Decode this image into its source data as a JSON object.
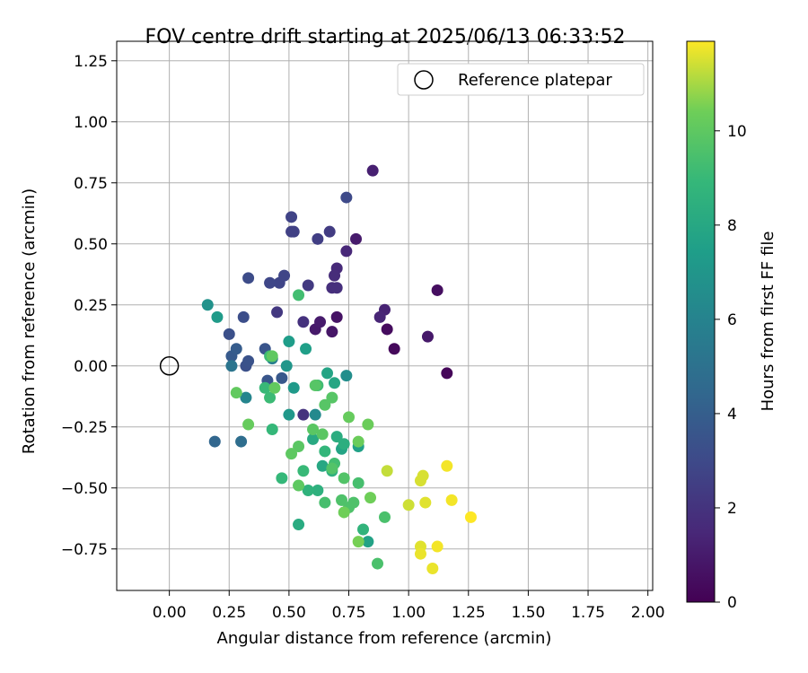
{
  "chart_data": {
    "type": "scatter",
    "title": "FOV centre drift starting at 2025/06/13 06:33:52",
    "xlabel": "Angular distance from reference (arcmin)",
    "ylabel": "Rotation from reference (arcmin)",
    "xlim": [
      -0.22,
      2.02
    ],
    "ylim": [
      -0.92,
      1.33
    ],
    "xticks": [
      "0.00",
      "0.25",
      "0.50",
      "0.75",
      "1.00",
      "1.25",
      "1.50",
      "1.75",
      "2.00"
    ],
    "yticks": [
      "−0.75",
      "−0.50",
      "−0.25",
      "0.00",
      "0.25",
      "0.50",
      "0.75",
      "1.00",
      "1.25"
    ],
    "grid": true,
    "legend": {
      "placement": "top-right",
      "entries": [
        "Reference platepar"
      ]
    },
    "reference_point": {
      "x": 0.0,
      "y": 0.0,
      "marker": "open-circle",
      "label": "Reference platepar"
    },
    "colorbar": {
      "label": "Hours from first FF file",
      "colormap": "viridis",
      "range": [
        0,
        11.9
      ],
      "ticks": [
        "0",
        "2",
        "4",
        "6",
        "8",
        "10"
      ]
    },
    "points": [
      {
        "x": 1.16,
        "y": -0.03,
        "h": 0.2
      },
      {
        "x": 0.94,
        "y": 0.07,
        "h": 0.3
      },
      {
        "x": 0.91,
        "y": 0.15,
        "h": 0.4
      },
      {
        "x": 1.12,
        "y": 0.31,
        "h": 0.5
      },
      {
        "x": 1.08,
        "y": 0.12,
        "h": 0.9
      },
      {
        "x": 0.7,
        "y": 0.2,
        "h": 0.7
      },
      {
        "x": 0.68,
        "y": 0.14,
        "h": 0.8
      },
      {
        "x": 0.61,
        "y": 0.15,
        "h": 0.9
      },
      {
        "x": 0.63,
        "y": 0.18,
        "h": 1.0
      },
      {
        "x": 0.78,
        "y": 0.52,
        "h": 1.0
      },
      {
        "x": 0.85,
        "y": 0.8,
        "h": 1.2
      },
      {
        "x": 0.9,
        "y": 0.23,
        "h": 1.3
      },
      {
        "x": 0.88,
        "y": 0.2,
        "h": 1.4
      },
      {
        "x": 0.74,
        "y": 0.47,
        "h": 1.5
      },
      {
        "x": 0.7,
        "y": 0.4,
        "h": 1.6
      },
      {
        "x": 0.69,
        "y": 0.37,
        "h": 1.7
      },
      {
        "x": 0.68,
        "y": 0.32,
        "h": 1.8
      },
      {
        "x": 0.7,
        "y": 0.32,
        "h": 1.8
      },
      {
        "x": 0.56,
        "y": 0.18,
        "h": 1.9
      },
      {
        "x": 0.56,
        "y": -0.2,
        "h": 2.0
      },
      {
        "x": 0.45,
        "y": 0.22,
        "h": 2.2
      },
      {
        "x": 0.58,
        "y": 0.33,
        "h": 2.3
      },
      {
        "x": 0.67,
        "y": 0.55,
        "h": 2.4
      },
      {
        "x": 0.62,
        "y": 0.52,
        "h": 2.5
      },
      {
        "x": 0.52,
        "y": 0.55,
        "h": 2.6
      },
      {
        "x": 0.51,
        "y": 0.55,
        "h": 2.6
      },
      {
        "x": 0.51,
        "y": 0.61,
        "h": 2.7
      },
      {
        "x": 0.46,
        "y": 0.34,
        "h": 2.8
      },
      {
        "x": 0.48,
        "y": 0.37,
        "h": 2.8
      },
      {
        "x": 0.42,
        "y": 0.34,
        "h": 2.9
      },
      {
        "x": 0.74,
        "y": 0.69,
        "h": 3.0
      },
      {
        "x": 0.33,
        "y": 0.36,
        "h": 3.1
      },
      {
        "x": 0.31,
        "y": 0.2,
        "h": 3.2
      },
      {
        "x": 0.25,
        "y": 0.13,
        "h": 3.3
      },
      {
        "x": 0.32,
        "y": -0.0,
        "h": 3.3
      },
      {
        "x": 0.33,
        "y": 0.02,
        "h": 3.4
      },
      {
        "x": 0.4,
        "y": 0.07,
        "h": 3.5
      },
      {
        "x": 0.41,
        "y": -0.06,
        "h": 3.6
      },
      {
        "x": 0.47,
        "y": -0.05,
        "h": 3.7
      },
      {
        "x": 0.26,
        "y": 0.04,
        "h": 3.8
      },
      {
        "x": 0.28,
        "y": 0.07,
        "h": 3.9
      },
      {
        "x": 0.19,
        "y": -0.31,
        "h": 4.4
      },
      {
        "x": 0.3,
        "y": -0.31,
        "h": 4.8
      },
      {
        "x": 0.26,
        "y": 0.0,
        "h": 5.2
      },
      {
        "x": 0.43,
        "y": 0.03,
        "h": 5.7
      },
      {
        "x": 0.32,
        "y": -0.13,
        "h": 6.1
      },
      {
        "x": 0.61,
        "y": -0.2,
        "h": 6.3
      },
      {
        "x": 0.74,
        "y": -0.04,
        "h": 6.6
      },
      {
        "x": 0.16,
        "y": 0.25,
        "h": 6.8
      },
      {
        "x": 0.49,
        "y": -0.0,
        "h": 7.0
      },
      {
        "x": 0.5,
        "y": -0.2,
        "h": 7.1
      },
      {
        "x": 0.52,
        "y": -0.09,
        "h": 7.2
      },
      {
        "x": 0.2,
        "y": 0.2,
        "h": 7.3
      },
      {
        "x": 0.5,
        "y": 0.1,
        "h": 7.4
      },
      {
        "x": 0.57,
        "y": 0.07,
        "h": 7.5
      },
      {
        "x": 0.79,
        "y": -0.33,
        "h": 7.6
      },
      {
        "x": 0.83,
        "y": -0.72,
        "h": 7.7
      },
      {
        "x": 0.72,
        "y": -0.34,
        "h": 7.8
      },
      {
        "x": 0.66,
        "y": -0.03,
        "h": 7.8
      },
      {
        "x": 0.69,
        "y": -0.07,
        "h": 7.9
      },
      {
        "x": 0.64,
        "y": -0.41,
        "h": 8.0
      },
      {
        "x": 0.6,
        "y": -0.3,
        "h": 8.1
      },
      {
        "x": 0.54,
        "y": -0.65,
        "h": 8.2
      },
      {
        "x": 0.7,
        "y": -0.29,
        "h": 8.3
      },
      {
        "x": 0.73,
        "y": -0.32,
        "h": 8.4
      },
      {
        "x": 0.62,
        "y": -0.51,
        "h": 8.5
      },
      {
        "x": 0.68,
        "y": -0.43,
        "h": 8.5
      },
      {
        "x": 0.58,
        "y": -0.51,
        "h": 8.6
      },
      {
        "x": 0.81,
        "y": -0.67,
        "h": 8.7
      },
      {
        "x": 0.65,
        "y": -0.35,
        "h": 8.8
      },
      {
        "x": 0.43,
        "y": -0.26,
        "h": 8.9
      },
      {
        "x": 0.47,
        "y": -0.46,
        "h": 8.9
      },
      {
        "x": 0.56,
        "y": -0.43,
        "h": 9.0
      },
      {
        "x": 0.4,
        "y": -0.09,
        "h": 9.0
      },
      {
        "x": 0.42,
        "y": 0.04,
        "h": 9.1
      },
      {
        "x": 0.42,
        "y": -0.13,
        "h": 9.1
      },
      {
        "x": 0.62,
        "y": -0.08,
        "h": 9.2
      },
      {
        "x": 0.54,
        "y": 0.29,
        "h": 9.3
      },
      {
        "x": 0.69,
        "y": -0.4,
        "h": 9.3
      },
      {
        "x": 0.79,
        "y": -0.48,
        "h": 9.4
      },
      {
        "x": 0.65,
        "y": -0.56,
        "h": 9.4
      },
      {
        "x": 0.87,
        "y": -0.81,
        "h": 9.5
      },
      {
        "x": 0.9,
        "y": -0.62,
        "h": 9.5
      },
      {
        "x": 0.72,
        "y": -0.55,
        "h": 9.6
      },
      {
        "x": 0.75,
        "y": -0.58,
        "h": 9.6
      },
      {
        "x": 0.77,
        "y": -0.56,
        "h": 9.6
      },
      {
        "x": 0.73,
        "y": -0.46,
        "h": 9.7
      },
      {
        "x": 0.68,
        "y": -0.42,
        "h": 9.7
      },
      {
        "x": 0.61,
        "y": -0.08,
        "h": 9.8
      },
      {
        "x": 0.65,
        "y": -0.16,
        "h": 9.8
      },
      {
        "x": 0.68,
        "y": -0.13,
        "h": 9.8
      },
      {
        "x": 0.6,
        "y": -0.26,
        "h": 9.9
      },
      {
        "x": 0.64,
        "y": -0.28,
        "h": 9.9
      },
      {
        "x": 0.54,
        "y": -0.33,
        "h": 9.9
      },
      {
        "x": 0.51,
        "y": -0.36,
        "h": 10.0
      },
      {
        "x": 0.54,
        "y": -0.49,
        "h": 10.0
      },
      {
        "x": 0.43,
        "y": 0.04,
        "h": 10.0
      },
      {
        "x": 0.44,
        "y": -0.09,
        "h": 10.1
      },
      {
        "x": 0.28,
        "y": -0.11,
        "h": 10.1
      },
      {
        "x": 0.33,
        "y": -0.24,
        "h": 10.2
      },
      {
        "x": 0.75,
        "y": -0.21,
        "h": 10.2
      },
      {
        "x": 0.79,
        "y": -0.31,
        "h": 10.3
      },
      {
        "x": 0.83,
        "y": -0.24,
        "h": 10.3
      },
      {
        "x": 0.84,
        "y": -0.54,
        "h": 10.4
      },
      {
        "x": 0.73,
        "y": -0.6,
        "h": 10.4
      },
      {
        "x": 0.79,
        "y": -0.72,
        "h": 10.5
      },
      {
        "x": 0.91,
        "y": -0.43,
        "h": 11.3
      },
      {
        "x": 1.0,
        "y": -0.57,
        "h": 11.4
      },
      {
        "x": 1.05,
        "y": -0.47,
        "h": 11.5
      },
      {
        "x": 1.06,
        "y": -0.45,
        "h": 11.5
      },
      {
        "x": 1.07,
        "y": -0.56,
        "h": 11.6
      },
      {
        "x": 1.05,
        "y": -0.74,
        "h": 11.6
      },
      {
        "x": 1.05,
        "y": -0.77,
        "h": 11.7
      },
      {
        "x": 1.1,
        "y": -0.83,
        "h": 11.7
      },
      {
        "x": 1.12,
        "y": -0.74,
        "h": 11.8
      },
      {
        "x": 1.16,
        "y": -0.41,
        "h": 11.8
      },
      {
        "x": 1.18,
        "y": -0.55,
        "h": 11.8
      },
      {
        "x": 1.26,
        "y": -0.62,
        "h": 11.9
      }
    ]
  }
}
